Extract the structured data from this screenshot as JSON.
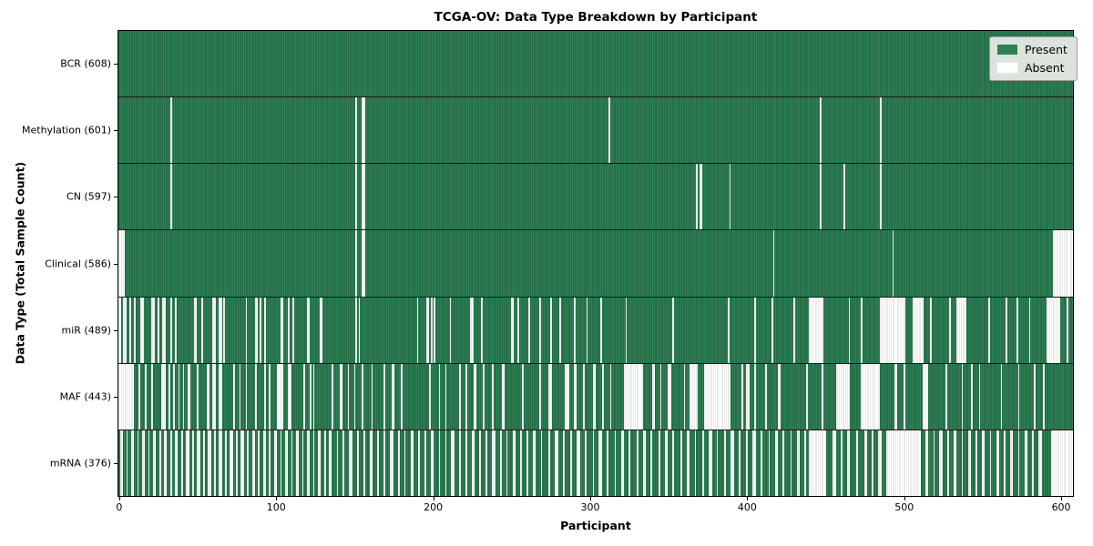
{
  "chart_data": {
    "type": "heatmap",
    "title": "TCGA-OV: Data Type Breakdown by Participant",
    "xlabel": "Participant",
    "ylabel": "Data Type (Total Sample Count)",
    "legend": {
      "present": "Present",
      "absent": "Absent"
    },
    "legend_position": "upper right",
    "colors": {
      "present": "#2e8055",
      "present_edge": "#1f5c3c",
      "absent": "#ffffff",
      "absent_edge": "#d4d4d4"
    },
    "n_participants": 608,
    "x_ticks": [
      0,
      100,
      200,
      300,
      400,
      500,
      600
    ],
    "xlim": [
      -0.5,
      607.5
    ],
    "rows": [
      {
        "name": "BCR",
        "label": "BCR (608)",
        "present_count": 608,
        "absent_ranges": []
      },
      {
        "name": "Methylation",
        "label": "Methylation (601)",
        "present_count": 601,
        "absent_ranges": [
          [
            33,
            33
          ],
          [
            151,
            151
          ],
          [
            155,
            156
          ],
          [
            312,
            312
          ],
          [
            447,
            447
          ],
          [
            485,
            485
          ]
        ]
      },
      {
        "name": "CN",
        "label": "CN (597)",
        "present_count": 597,
        "absent_ranges": [
          [
            33,
            33
          ],
          [
            151,
            151
          ],
          [
            155,
            156
          ],
          [
            368,
            368
          ],
          [
            370,
            371
          ],
          [
            389,
            389
          ],
          [
            447,
            447
          ],
          [
            462,
            462
          ],
          [
            485,
            485
          ]
        ]
      },
      {
        "name": "Clinical",
        "label": "Clinical (586)",
        "present_count": 586,
        "absent_ranges": [
          [
            0,
            3
          ],
          [
            151,
            151
          ],
          [
            155,
            156
          ],
          [
            417,
            417
          ],
          [
            493,
            493
          ],
          [
            595,
            607
          ]
        ]
      },
      {
        "name": "miR",
        "label": "miR (489)",
        "present_count": 489,
        "absent_ranges": [
          [
            0,
            1
          ],
          [
            3,
            4
          ],
          [
            7,
            7
          ],
          [
            10,
            10
          ],
          [
            14,
            15
          ],
          [
            21,
            22
          ],
          [
            25,
            25
          ],
          [
            28,
            29
          ],
          [
            33,
            33
          ],
          [
            36,
            36
          ],
          [
            48,
            49
          ],
          [
            53,
            53
          ],
          [
            60,
            61
          ],
          [
            64,
            65
          ],
          [
            67,
            67
          ],
          [
            81,
            81
          ],
          [
            87,
            88
          ],
          [
            90,
            90
          ],
          [
            93,
            93
          ],
          [
            103,
            104
          ],
          [
            108,
            108
          ],
          [
            111,
            111
          ],
          [
            120,
            121
          ],
          [
            128,
            129
          ],
          [
            151,
            151
          ],
          [
            153,
            153
          ],
          [
            190,
            190
          ],
          [
            196,
            197
          ],
          [
            199,
            199
          ],
          [
            201,
            201
          ],
          [
            211,
            211
          ],
          [
            224,
            225
          ],
          [
            231,
            231
          ],
          [
            250,
            251
          ],
          [
            254,
            254
          ],
          [
            261,
            261
          ],
          [
            268,
            268
          ],
          [
            275,
            275
          ],
          [
            281,
            281
          ],
          [
            290,
            290
          ],
          [
            298,
            298
          ],
          [
            307,
            307
          ],
          [
            323,
            323
          ],
          [
            353,
            353
          ],
          [
            388,
            388
          ],
          [
            405,
            405
          ],
          [
            416,
            416
          ],
          [
            430,
            430
          ],
          [
            440,
            448
          ],
          [
            465,
            465
          ],
          [
            473,
            473
          ],
          [
            485,
            500
          ],
          [
            506,
            512
          ],
          [
            517,
            517
          ],
          [
            529,
            529
          ],
          [
            534,
            539
          ],
          [
            554,
            554
          ],
          [
            565,
            565
          ],
          [
            572,
            572
          ],
          [
            580,
            580
          ],
          [
            591,
            599
          ],
          [
            604,
            604
          ]
        ]
      },
      {
        "name": "MAF",
        "label": "MAF (443)",
        "present_count": 443,
        "absent_ranges": [
          [
            0,
            9
          ],
          [
            13,
            13
          ],
          [
            17,
            17
          ],
          [
            21,
            21
          ],
          [
            27,
            29
          ],
          [
            32,
            32
          ],
          [
            35,
            35
          ],
          [
            38,
            38
          ],
          [
            41,
            41
          ],
          [
            44,
            45
          ],
          [
            50,
            50
          ],
          [
            56,
            57
          ],
          [
            60,
            61
          ],
          [
            64,
            65
          ],
          [
            73,
            73
          ],
          [
            77,
            77
          ],
          [
            81,
            81
          ],
          [
            87,
            87
          ],
          [
            93,
            93
          ],
          [
            96,
            96
          ],
          [
            101,
            104
          ],
          [
            108,
            109
          ],
          [
            118,
            118
          ],
          [
            122,
            122
          ],
          [
            124,
            124
          ],
          [
            136,
            136
          ],
          [
            141,
            142
          ],
          [
            146,
            146
          ],
          [
            150,
            150
          ],
          [
            155,
            155
          ],
          [
            161,
            161
          ],
          [
            169,
            169
          ],
          [
            174,
            175
          ],
          [
            180,
            180
          ],
          [
            198,
            198
          ],
          [
            204,
            204
          ],
          [
            208,
            208
          ],
          [
            217,
            217
          ],
          [
            221,
            221
          ],
          [
            226,
            227
          ],
          [
            232,
            232
          ],
          [
            238,
            238
          ],
          [
            244,
            245
          ],
          [
            257,
            257
          ],
          [
            268,
            268
          ],
          [
            274,
            275
          ],
          [
            284,
            286
          ],
          [
            290,
            291
          ],
          [
            296,
            296
          ],
          [
            302,
            303
          ],
          [
            308,
            308
          ],
          [
            313,
            313
          ],
          [
            322,
            333
          ],
          [
            340,
            341
          ],
          [
            345,
            345
          ],
          [
            350,
            351
          ],
          [
            360,
            360
          ],
          [
            364,
            368
          ],
          [
            373,
            389
          ],
          [
            397,
            397
          ],
          [
            400,
            401
          ],
          [
            405,
            405
          ],
          [
            412,
            412
          ],
          [
            420,
            421
          ],
          [
            438,
            438
          ],
          [
            448,
            448
          ],
          [
            457,
            465
          ],
          [
            473,
            484
          ],
          [
            494,
            495
          ],
          [
            500,
            500
          ],
          [
            512,
            515
          ],
          [
            527,
            527
          ],
          [
            537,
            537
          ],
          [
            543,
            543
          ],
          [
            548,
            548
          ],
          [
            562,
            562
          ],
          [
            573,
            573
          ],
          [
            583,
            583
          ],
          [
            589,
            589
          ]
        ]
      },
      {
        "name": "mRNA",
        "label": "mRNA (376)",
        "present_count": 376,
        "absent_ranges": [
          [
            1,
            2
          ],
          [
            5,
            5
          ],
          [
            8,
            9
          ],
          [
            12,
            12
          ],
          [
            15,
            16
          ],
          [
            19,
            19
          ],
          [
            22,
            23
          ],
          [
            26,
            26
          ],
          [
            29,
            30
          ],
          [
            33,
            33
          ],
          [
            36,
            37
          ],
          [
            40,
            40
          ],
          [
            43,
            44
          ],
          [
            47,
            47
          ],
          [
            50,
            51
          ],
          [
            54,
            54
          ],
          [
            57,
            58
          ],
          [
            61,
            61
          ],
          [
            64,
            65
          ],
          [
            68,
            68
          ],
          [
            71,
            72
          ],
          [
            75,
            75
          ],
          [
            78,
            79
          ],
          [
            82,
            82
          ],
          [
            85,
            86
          ],
          [
            89,
            89
          ],
          [
            92,
            93
          ],
          [
            96,
            96
          ],
          [
            99,
            100
          ],
          [
            103,
            103
          ],
          [
            106,
            107
          ],
          [
            110,
            110
          ],
          [
            113,
            114
          ],
          [
            117,
            117
          ],
          [
            120,
            121
          ],
          [
            124,
            124
          ],
          [
            127,
            128
          ],
          [
            131,
            131
          ],
          [
            134,
            135
          ],
          [
            139,
            139
          ],
          [
            143,
            143
          ],
          [
            147,
            148
          ],
          [
            152,
            152
          ],
          [
            156,
            156
          ],
          [
            160,
            161
          ],
          [
            165,
            165
          ],
          [
            169,
            169
          ],
          [
            173,
            174
          ],
          [
            178,
            178
          ],
          [
            182,
            182
          ],
          [
            186,
            187
          ],
          [
            191,
            191
          ],
          [
            195,
            195
          ],
          [
            199,
            200
          ],
          [
            204,
            204
          ],
          [
            208,
            208
          ],
          [
            212,
            213
          ],
          [
            217,
            217
          ],
          [
            221,
            221
          ],
          [
            225,
            226
          ],
          [
            230,
            230
          ],
          [
            234,
            234
          ],
          [
            238,
            239
          ],
          [
            243,
            243
          ],
          [
            247,
            247
          ],
          [
            251,
            252
          ],
          [
            256,
            256
          ],
          [
            260,
            260
          ],
          [
            264,
            265
          ],
          [
            269,
            269
          ],
          [
            274,
            274
          ],
          [
            278,
            279
          ],
          [
            283,
            283
          ],
          [
            288,
            288
          ],
          [
            292,
            293
          ],
          [
            297,
            297
          ],
          [
            302,
            302
          ],
          [
            306,
            307
          ],
          [
            311,
            311
          ],
          [
            316,
            316
          ],
          [
            320,
            321
          ],
          [
            325,
            325
          ],
          [
            330,
            330
          ],
          [
            334,
            335
          ],
          [
            339,
            339
          ],
          [
            344,
            344
          ],
          [
            348,
            349
          ],
          [
            353,
            353
          ],
          [
            358,
            358
          ],
          [
            362,
            363
          ],
          [
            367,
            367
          ],
          [
            372,
            372
          ],
          [
            376,
            377
          ],
          [
            381,
            381
          ],
          [
            386,
            386
          ],
          [
            390,
            391
          ],
          [
            395,
            395
          ],
          [
            400,
            400
          ],
          [
            404,
            405
          ],
          [
            409,
            409
          ],
          [
            414,
            414
          ],
          [
            418,
            419
          ],
          [
            423,
            423
          ],
          [
            428,
            428
          ],
          [
            432,
            433
          ],
          [
            437,
            437
          ],
          [
            440,
            450
          ],
          [
            455,
            456
          ],
          [
            460,
            460
          ],
          [
            464,
            465
          ],
          [
            470,
            470
          ],
          [
            475,
            476
          ],
          [
            480,
            480
          ],
          [
            484,
            485
          ],
          [
            489,
            510
          ],
          [
            514,
            515
          ],
          [
            519,
            519
          ],
          [
            523,
            524
          ],
          [
            528,
            528
          ],
          [
            532,
            533
          ],
          [
            537,
            537
          ],
          [
            541,
            542
          ],
          [
            546,
            546
          ],
          [
            550,
            551
          ],
          [
            555,
            555
          ],
          [
            559,
            560
          ],
          [
            564,
            564
          ],
          [
            568,
            569
          ],
          [
            573,
            573
          ],
          [
            577,
            578
          ],
          [
            582,
            582
          ],
          [
            586,
            587
          ],
          [
            594,
            607
          ]
        ]
      }
    ]
  }
}
